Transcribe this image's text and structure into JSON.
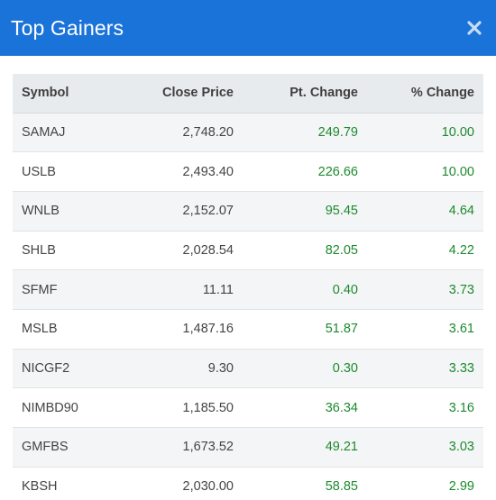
{
  "modal": {
    "title": "Top Gainers",
    "close_icon": "close-icon",
    "header_color": "#1a73d9"
  },
  "table": {
    "columns": [
      "Symbol",
      "Close Price",
      "Pt. Change",
      "% Change"
    ],
    "gain_color": "#1d8a2e",
    "rows": [
      {
        "symbol": "SAMAJ",
        "close": "2,748.20",
        "pt": "249.79",
        "pct": "10.00"
      },
      {
        "symbol": "USLB",
        "close": "2,493.40",
        "pt": "226.66",
        "pct": "10.00"
      },
      {
        "symbol": "WNLB",
        "close": "2,152.07",
        "pt": "95.45",
        "pct": "4.64"
      },
      {
        "symbol": "SHLB",
        "close": "2,028.54",
        "pt": "82.05",
        "pct": "4.22"
      },
      {
        "symbol": "SFMF",
        "close": "11.11",
        "pt": "0.40",
        "pct": "3.73"
      },
      {
        "symbol": "MSLB",
        "close": "1,487.16",
        "pt": "51.87",
        "pct": "3.61"
      },
      {
        "symbol": "NICGF2",
        "close": "9.30",
        "pt": "0.30",
        "pct": "3.33"
      },
      {
        "symbol": "NIMBD90",
        "close": "1,185.50",
        "pt": "36.34",
        "pct": "3.16"
      },
      {
        "symbol": "GMFBS",
        "close": "1,673.52",
        "pt": "49.21",
        "pct": "3.03"
      },
      {
        "symbol": "KBSH",
        "close": "2,030.00",
        "pt": "58.85",
        "pct": "2.99"
      }
    ]
  }
}
